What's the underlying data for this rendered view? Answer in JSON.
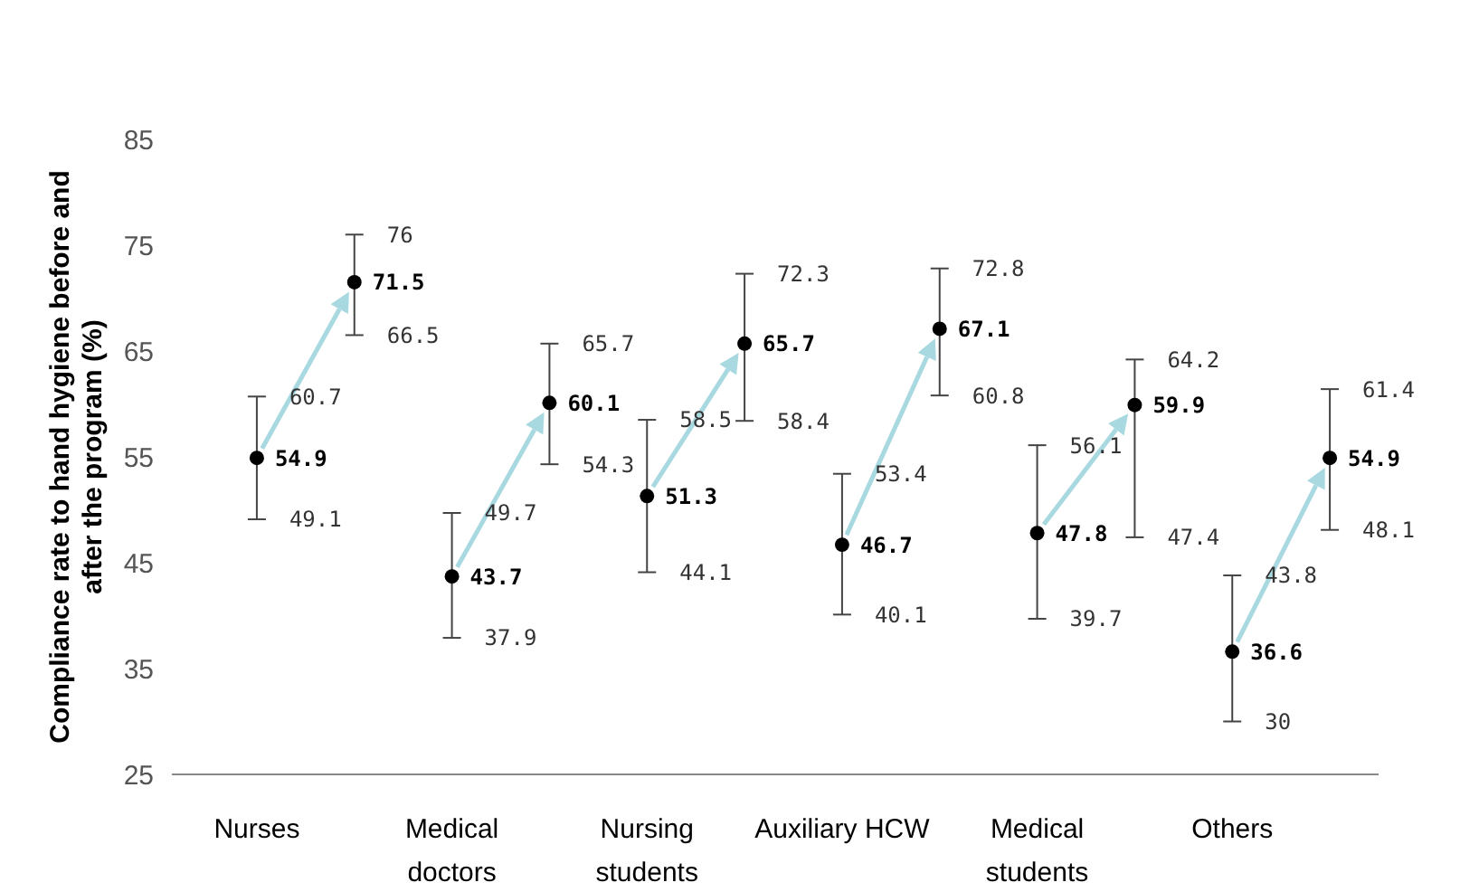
{
  "chart_data": {
    "type": "scatter",
    "ylabel": "Compliance rate to hand hygiene before and after the program (%)",
    "categories": [
      "Nurses",
      null,
      "Medical doctors",
      null,
      "Nursing students",
      null,
      "Auxiliary HCW",
      null,
      "Medical students",
      null,
      "Others",
      null
    ],
    "series": [
      {
        "color": "#000000",
        "values": [
          54.9,
          null,
          43.7,
          null,
          51.3,
          null,
          46.7,
          null,
          47.8,
          null,
          36.6,
          null
        ],
        "errors": [
          [
            49.1,
            60.7
          ],
          null,
          [
            37.9,
            49.7
          ],
          null,
          [
            44.1,
            58.5
          ],
          null,
          [
            40.1,
            53.4
          ],
          null,
          [
            39.7,
            56.1
          ],
          null,
          [
            30,
            43.8
          ],
          null
        ]
      },
      {
        "color": "#000000",
        "values": [
          null,
          71.5,
          null,
          60.1,
          null,
          65.7,
          null,
          67.1,
          null,
          59.9,
          null,
          54.9
        ],
        "errors": [
          null,
          [
            66.5,
            76
          ],
          null,
          [
            54.3,
            65.7
          ],
          null,
          [
            58.4,
            72.3
          ],
          null,
          [
            60.8,
            72.8
          ],
          null,
          [
            47.4,
            64.2
          ],
          null,
          [
            48.1,
            61.4
          ]
        ]
      }
    ],
    "annotations": [
      {
        "text": "60.7",
        "x": "Nurses",
        "y": 60.7
      },
      {
        "text": "49.1",
        "x": "Nurses",
        "y": 49.1
      },
      "76",
      "66.5",
      {
        "text": "49.7",
        "x": "Medical doctors",
        "y": 49.7
      },
      {
        "text": "37.9",
        "x": "Medical doctors",
        "y": 37.9
      },
      "65.7",
      "54.3",
      {
        "text": "58.5",
        "x": "Nursing students",
        "y": 58.5
      },
      {
        "text": "44.1",
        "x": "Nursing students",
        "y": 44.1
      },
      "72.3",
      "58.4",
      {
        "text": "53.4",
        "x": "Auxiliary HCW",
        "y": 53.4
      },
      {
        "text": "40.1",
        "x": "Auxiliary HCW",
        "y": 40.1
      },
      "72.8",
      "60.8",
      {
        "text": "56.1",
        "x": "Medical students",
        "y": 56.1
      },
      {
        "text": "39.7",
        "x": "Medical students",
        "y": 39.7
      },
      "64.2",
      "47.4",
      {
        "text": "43.8",
        "x": "Others",
        "y": 43.8
      },
      {
        "text": "30",
        "x": "Others",
        "y": 30
      },
      "61.4",
      "48.1"
    ],
    "ylim": [
      25,
      85
    ],
    "yticks": [
      25,
      35,
      45,
      55,
      65,
      75,
      85
    ],
    "grid": false,
    "legend": false,
    "marker": "circle",
    "data_labels": true
  }
}
